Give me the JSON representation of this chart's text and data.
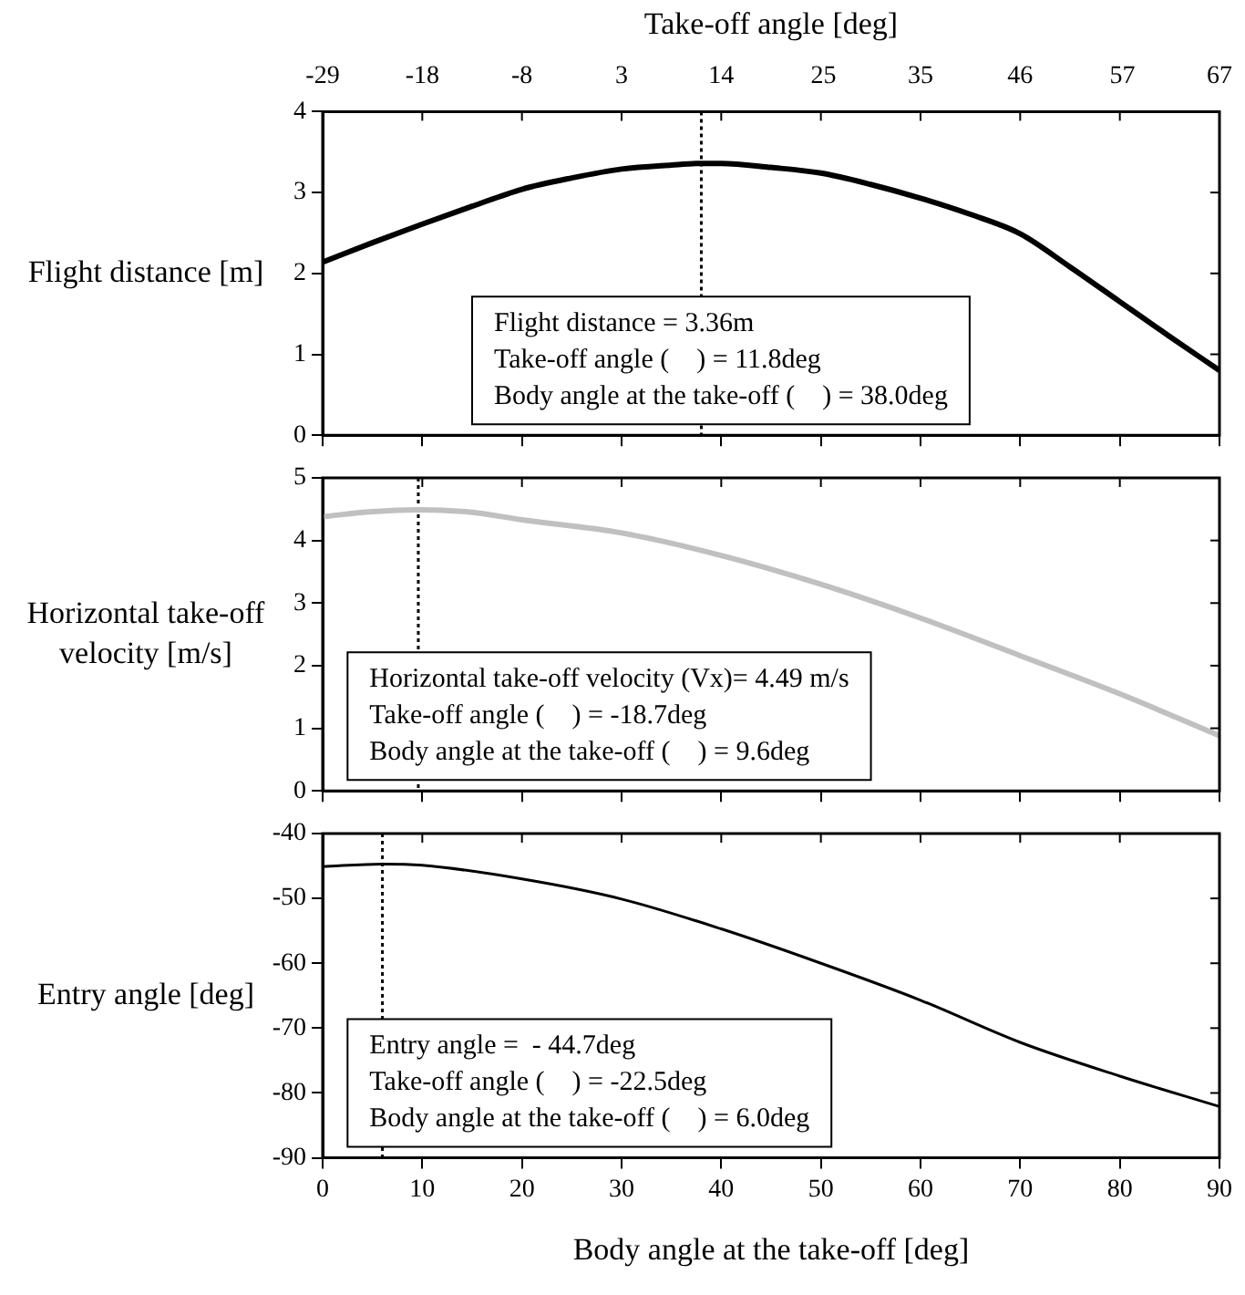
{
  "chart_data": [
    {
      "type": "line",
      "ylabel": "Flight distance [m]",
      "x2label": "Take-off angle [deg]",
      "x2lim": [
        -29,
        67
      ],
      "x2ticks": [
        -29,
        {
          "value": -18.33,
          "label": "-18"
        },
        {
          "value": -7.67,
          "label": "-8"
        },
        3,
        {
          "value": 13.67,
          "label": "14"
        },
        {
          "value": 24.6,
          "label": "25"
        },
        35,
        {
          "value": 45.67,
          "label": "46"
        },
        {
          "value": 56.6,
          "label": "57"
        },
        67
      ],
      "xlim": [
        0,
        90
      ],
      "xticks": [
        0,
        10,
        20,
        30,
        40,
        50,
        60,
        70,
        80,
        90
      ],
      "ylim": [
        0,
        4
      ],
      "yticks": [
        0,
        1,
        2,
        3,
        4
      ],
      "tick_labels": "y",
      "grid": false,
      "legend": false,
      "marker": "none",
      "line_style": "solid",
      "series": [
        {
          "color": "#000000",
          "x": [
            0,
            5,
            10,
            15,
            20,
            25,
            30,
            35,
            38,
            40,
            45,
            50,
            55,
            60,
            65,
            70,
            75,
            80,
            85,
            90
          ],
          "values": [
            2.14,
            2.38,
            2.61,
            2.83,
            3.04,
            3.18,
            3.29,
            3.34,
            3.36,
            3.36,
            3.31,
            3.24,
            3.1,
            2.93,
            2.73,
            2.49,
            2.08,
            1.65,
            1.22,
            0.8
          ]
        }
      ],
      "ref_lines": [
        {
          "axis": "x",
          "value": 38.0,
          "line_style": "dotted"
        }
      ],
      "annotations": [
        "Flight distance = 3.36m",
        "Take-off angle (    ) = 11.8deg",
        "Body angle at the take-off (    ) = 38.0deg"
      ]
    },
    {
      "type": "line",
      "ylabel": "Horizontal take-off velocity [m/s]",
      "xlim": [
        0,
        90
      ],
      "xticks": [
        0,
        10,
        20,
        30,
        40,
        50,
        60,
        70,
        80,
        90
      ],
      "ylim": [
        0,
        5
      ],
      "yticks": [
        0,
        1,
        2,
        3,
        4,
        5
      ],
      "tick_labels": "y",
      "grid": false,
      "legend": false,
      "marker": "none",
      "line_style": "solid",
      "series": [
        {
          "color": "#c0c0c0",
          "x": [
            0,
            5,
            9.6,
            15,
            20,
            30,
            40,
            50,
            60,
            70,
            80,
            90
          ],
          "values": [
            4.38,
            4.46,
            4.49,
            4.45,
            4.33,
            4.12,
            3.76,
            3.3,
            2.76,
            2.16,
            1.55,
            0.88
          ]
        }
      ],
      "ref_lines": [
        {
          "axis": "x",
          "value": 9.6,
          "line_style": "dotted"
        }
      ],
      "annotations": [
        "Horizontal take-off velocity (Vx)= 4.49 m/s",
        "Take-off angle (    ) = -18.7deg",
        "Body angle at the take-off (    ) = 9.6deg"
      ]
    },
    {
      "type": "line",
      "ylabel": "Entry angle [deg]",
      "xlabel": "Body angle at the take-off [deg]",
      "xlim": [
        0,
        90
      ],
      "xticks": [
        0,
        10,
        20,
        30,
        40,
        50,
        60,
        70,
        80,
        90
      ],
      "ylim": [
        -90,
        -40
      ],
      "yticks": [
        -90,
        -80,
        -70,
        -60,
        -50,
        -40
      ],
      "grid": false,
      "legend": false,
      "marker": "none",
      "line_style": "solid",
      "series": [
        {
          "color": "#000000",
          "x": [
            0,
            6,
            10,
            20,
            30,
            40,
            50,
            60,
            70,
            80,
            90
          ],
          "values": [
            -45.1,
            -44.7,
            -44.9,
            -47.0,
            -50.1,
            -54.7,
            -60.0,
            -65.7,
            -72.2,
            -77.4,
            -82.1
          ]
        }
      ],
      "ref_lines": [
        {
          "axis": "x",
          "value": 6.0,
          "line_style": "dotted"
        }
      ],
      "annotations": [
        "Entry angle =  - 44.7deg",
        "Take-off angle (    ) = -22.5deg",
        "Body angle at the take-off (    ) = 6.0deg"
      ]
    }
  ]
}
